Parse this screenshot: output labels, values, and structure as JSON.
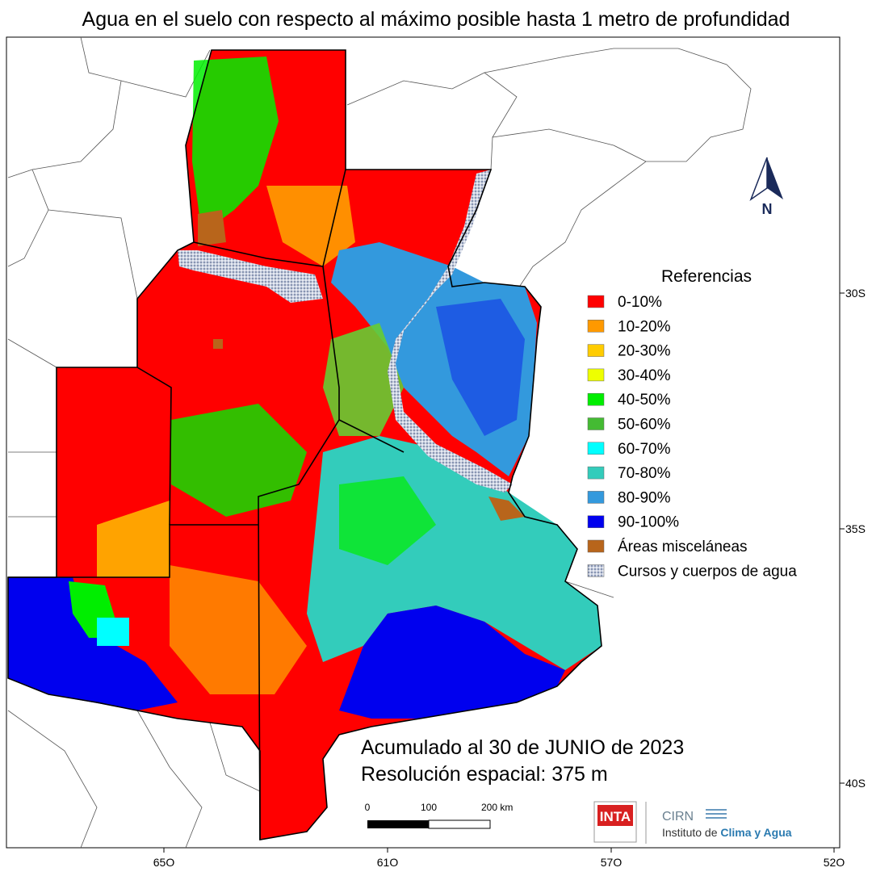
{
  "title": "Agua en el suelo con respecto al máximo posible hasta 1 metro de profundidad",
  "north": "N",
  "legend": {
    "title": "Referencias",
    "items": [
      {
        "label": "0-10%",
        "color": "#ff0000"
      },
      {
        "label": "10-20%",
        "color": "#ff9900"
      },
      {
        "label": "20-30%",
        "color": "#ffcc00"
      },
      {
        "label": "30-40%",
        "color": "#eeff00"
      },
      {
        "label": "40-50%",
        "color": "#00ee00"
      },
      {
        "label": "50-60%",
        "color": "#44bb33"
      },
      {
        "label": "60-70%",
        "color": "#00ffff"
      },
      {
        "label": "70-80%",
        "color": "#33ccbb"
      },
      {
        "label": "80-90%",
        "color": "#3399dd"
      },
      {
        "label": "90-100%",
        "color": "#0000ee"
      },
      {
        "label": "Áreas misceláneas",
        "color": "#b8651b"
      },
      {
        "label": "Cursos y cuerpos de agua",
        "color": "#aab4cc"
      }
    ]
  },
  "lat_labels": [
    "30S",
    "35S",
    "40S"
  ],
  "lon_labels": [
    "65O",
    "61O",
    "57O",
    "52O"
  ],
  "notes": [
    "Acumulado al 30 de JUNIO de 2023",
    "Resolución espacial: 375 m"
  ],
  "scale_bar": [
    "0",
    "100",
    "200 km"
  ],
  "logos": {
    "inta": "INTA",
    "cirn": "CIRN",
    "institute": "Instituto de ",
    "institute_emphasis": "Clima y Agua"
  }
}
